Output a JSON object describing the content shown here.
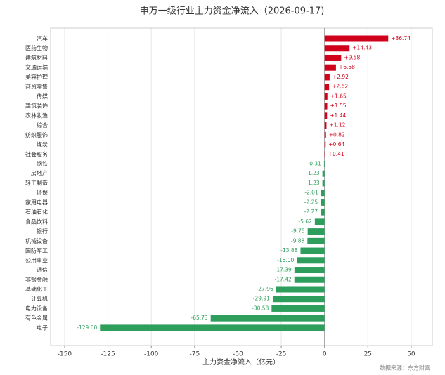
{
  "chart_data": {
    "type": "barh",
    "title": "申万一级行业主力资金净流入（2026-09-17)",
    "xlabel": "主力资金净流入（亿元）",
    "source": "数据来源：东方财富",
    "categories": [
      "汽车",
      "医药生物",
      "建筑材料",
      "交通运输",
      "美容护理",
      "商贸零售",
      "传媒",
      "建筑装饰",
      "农林牧渔",
      "综合",
      "纺织服饰",
      "煤炭",
      "社会服务",
      "钢铁",
      "房地产",
      "轻工制造",
      "环保",
      "家用电器",
      "石油石化",
      "食品饮料",
      "银行",
      "机械设备",
      "国防军工",
      "公用事业",
      "通信",
      "非银金融",
      "基础化工",
      "计算机",
      "电力设备",
      "有色金属",
      "电子"
    ],
    "values": [
      36.74,
      14.43,
      9.58,
      6.58,
      2.92,
      2.62,
      1.65,
      1.55,
      1.44,
      1.12,
      0.82,
      0.64,
      0.41,
      -0.31,
      -1.23,
      -1.23,
      -2.01,
      -2.25,
      -2.27,
      -5.62,
      -9.75,
      -9.88,
      -13.88,
      -16.0,
      -17.39,
      -17.42,
      -27.96,
      -29.91,
      -30.58,
      -65.73,
      -129.6
    ],
    "value_labels": [
      "+36.74",
      "+14.43",
      "+9.58",
      "+6.58",
      "+2.92",
      "+2.62",
      "+1.65",
      "+1.55",
      "+1.44",
      "+1.12",
      "+0.82",
      "+0.64",
      "+0.41",
      "-0.31",
      "-1.23",
      "-1.23",
      "-2.01",
      "-2.25",
      "-2.27",
      "-5.62",
      "-9.75",
      "-9.88",
      "-13.88",
      "-16.00",
      "-17.39",
      "-17.42",
      "-27.96",
      "-29.91",
      "-30.58",
      "-65.73",
      "-129.60"
    ],
    "color_positive": "#d0021b",
    "color_negative": "#2e9e5c",
    "xlim": [
      -158.1,
      62.2
    ],
    "xticks": [
      -150,
      -125,
      -100,
      -75,
      -50,
      -25,
      0,
      25,
      50
    ],
    "grid": true
  }
}
